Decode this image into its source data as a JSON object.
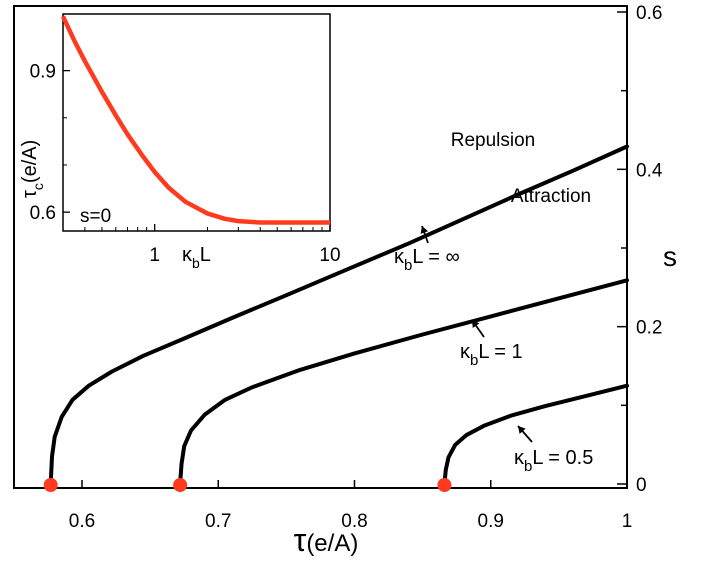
{
  "chart_data": [
    {
      "type": "line",
      "xlabel_main": "τ",
      "xlabel_unit": "(e/A)",
      "ylabel": "s",
      "xlim": [
        0.55,
        1.0
      ],
      "ylim": [
        0.0,
        0.6
      ],
      "x_ticks": [
        {
          "v": 0.6,
          "label": "0.6"
        },
        {
          "v": 0.7,
          "label": "0.7"
        },
        {
          "v": 0.8,
          "label": "0.8"
        },
        {
          "v": 0.9,
          "label": "0.9"
        },
        {
          "v": 1.0,
          "label": "1"
        }
      ],
      "y_ticks": [
        {
          "v": 0.0,
          "label": "0"
        },
        {
          "v": 0.2,
          "label": "0.2"
        },
        {
          "v": 0.4,
          "label": "0.4"
        },
        {
          "v": 0.6,
          "label": "0.6"
        }
      ],
      "y_minor_ticks": [
        0.1,
        0.3,
        0.5
      ],
      "region_labels": {
        "upper": "Repulsion",
        "lower": "Attraction"
      },
      "series": [
        {
          "label": "κ_bL = ∞",
          "label_parts": [
            "κ",
            "b",
            "L = ∞"
          ],
          "color": "#000000",
          "x": [
            0.577,
            0.578,
            0.58,
            0.585,
            0.593,
            0.605,
            0.622,
            0.645,
            0.675,
            0.71,
            0.75,
            0.795,
            0.84,
            0.88,
            0.92,
            0.96,
            1.0
          ],
          "y": [
            0.0,
            0.035,
            0.06,
            0.085,
            0.107,
            0.125,
            0.143,
            0.163,
            0.185,
            0.211,
            0.24,
            0.273,
            0.306,
            0.337,
            0.368,
            0.398,
            0.429
          ]
        },
        {
          "label": "κ_bL = 1",
          "label_parts": [
            "κ",
            "b",
            "L = 1"
          ],
          "color": "#000000",
          "x": [
            0.672,
            0.673,
            0.675,
            0.68,
            0.69,
            0.705,
            0.725,
            0.76,
            0.8,
            0.85,
            0.9,
            0.95,
            1.0
          ],
          "y": [
            0.0,
            0.025,
            0.048,
            0.068,
            0.088,
            0.107,
            0.123,
            0.145,
            0.166,
            0.19,
            0.213,
            0.236,
            0.259
          ]
        },
        {
          "label": "κ_bL = 0.5",
          "label_parts": [
            "κ",
            "b",
            "L = 0.5"
          ],
          "color": "#000000",
          "x": [
            0.866,
            0.867,
            0.869,
            0.874,
            0.882,
            0.895,
            0.915,
            0.94,
            0.97,
            1.0
          ],
          "y": [
            0.0,
            0.018,
            0.034,
            0.05,
            0.062,
            0.074,
            0.087,
            0.099,
            0.112,
            0.125
          ]
        }
      ],
      "critical_points": {
        "color": "#ff3b1f",
        "x": [
          0.577,
          0.672,
          0.866
        ],
        "y": [
          0,
          0,
          0
        ]
      }
    },
    {
      "type": "line",
      "inset": true,
      "xscale": "log",
      "xlim": [
        0.3,
        10
      ],
      "ylim": [
        0.56,
        1.02
      ],
      "xlabel_parts": [
        "κ",
        "b",
        "L"
      ],
      "ylabel_parts": [
        "τ",
        "c",
        "(e/A)"
      ],
      "x_ticks": [
        {
          "v": 1,
          "label": "1"
        },
        {
          "v": 10,
          "label": "10"
        }
      ],
      "y_ticks": [
        {
          "v": 0.6,
          "label": "0.6"
        },
        {
          "v": 0.9,
          "label": "0.9"
        }
      ],
      "annotation": "s=0",
      "color": "#ff3b1f",
      "x": [
        0.3,
        0.35,
        0.4,
        0.5,
        0.6,
        0.7,
        0.85,
        1.0,
        1.2,
        1.5,
        2.0,
        2.5,
        3.0,
        4.0,
        5.0,
        7.0,
        10.0
      ],
      "y": [
        1.015,
        0.962,
        0.92,
        0.855,
        0.805,
        0.765,
        0.72,
        0.685,
        0.652,
        0.622,
        0.597,
        0.586,
        0.581,
        0.578,
        0.578,
        0.578,
        0.578
      ]
    }
  ]
}
